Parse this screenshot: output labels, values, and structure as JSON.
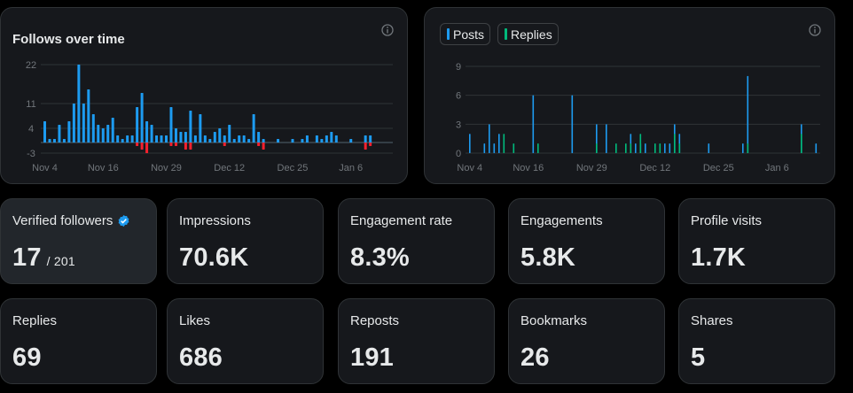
{
  "follows_chart": {
    "title": "Follows over time",
    "icon": "info-icon",
    "colors": {
      "positive": "#1d9bf0",
      "negative": "#f4212e",
      "grid": "#2f3336",
      "axis": "#71767b"
    }
  },
  "posts_chart": {
    "icon": "info-icon",
    "legend": [
      {
        "label": "Posts",
        "color": "#1d9bf0"
      },
      {
        "label": "Replies",
        "color": "#00ba7c"
      }
    ]
  },
  "stats": [
    {
      "label": "Verified followers",
      "value": "17",
      "sub": "/ 201",
      "verified_icon": "verified-badge-icon"
    },
    {
      "label": "Impressions",
      "value": "70.6K"
    },
    {
      "label": "Engagement rate",
      "value": "8.3%"
    },
    {
      "label": "Engagements",
      "value": "5.8K"
    },
    {
      "label": "Profile visits",
      "value": "1.7K"
    },
    {
      "label": "Replies",
      "value": "69"
    },
    {
      "label": "Likes",
      "value": "686"
    },
    {
      "label": "Reposts",
      "value": "191"
    },
    {
      "label": "Bookmarks",
      "value": "26"
    },
    {
      "label": "Shares",
      "value": "5"
    }
  ],
  "chart_data": [
    {
      "type": "bar",
      "title": "Follows over time",
      "ylim": [
        -3,
        22
      ],
      "yticks": [
        22,
        11,
        4,
        -3
      ],
      "xtick_labels": [
        "Nov 4",
        "Nov 16",
        "Nov 29",
        "Dec 12",
        "Dec 25",
        "Jan 6"
      ],
      "xtick_days": [
        0,
        12,
        25,
        38,
        51,
        63
      ],
      "x_start": "Nov 4",
      "series": [
        {
          "values": [
            {
              "day": 0,
              "value": 6
            },
            {
              "day": 1,
              "value": 1
            },
            {
              "day": 2,
              "value": 1
            },
            {
              "day": 3,
              "value": 5
            },
            {
              "day": 4,
              "value": 1
            },
            {
              "day": 5,
              "value": 6
            },
            {
              "day": 6,
              "value": 11
            },
            {
              "day": 7,
              "value": 22
            },
            {
              "day": 8,
              "value": 11
            },
            {
              "day": 9,
              "value": 15
            },
            {
              "day": 10,
              "value": 8
            },
            {
              "day": 11,
              "value": 5
            },
            {
              "day": 12,
              "value": 4
            },
            {
              "day": 13,
              "value": 5
            },
            {
              "day": 14,
              "value": 7
            },
            {
              "day": 15,
              "value": 2
            },
            {
              "day": 16,
              "value": 1
            },
            {
              "day": 17,
              "value": 2
            },
            {
              "day": 18,
              "value": 2
            },
            {
              "day": 19,
              "value": 10
            },
            {
              "day": 20,
              "value": 14
            },
            {
              "day": 21,
              "value": 6
            },
            {
              "day": 22,
              "value": 5
            },
            {
              "day": 23,
              "value": 2
            },
            {
              "day": 24,
              "value": 2
            },
            {
              "day": 25,
              "value": 2
            },
            {
              "day": 26,
              "value": 10
            },
            {
              "day": 27,
              "value": 4
            },
            {
              "day": 28,
              "value": 3
            },
            {
              "day": 29,
              "value": 3
            },
            {
              "day": 30,
              "value": 9
            },
            {
              "day": 31,
              "value": 2
            },
            {
              "day": 32,
              "value": 8
            },
            {
              "day": 33,
              "value": 2
            },
            {
              "day": 34,
              "value": 1
            },
            {
              "day": 35,
              "value": 3
            },
            {
              "day": 36,
              "value": 4
            },
            {
              "day": 37,
              "value": 2
            },
            {
              "day": 38,
              "value": 5
            },
            {
              "day": 39,
              "value": 1
            },
            {
              "day": 40,
              "value": 2
            },
            {
              "day": 41,
              "value": 2
            },
            {
              "day": 42,
              "value": 1
            },
            {
              "day": 43,
              "value": 8
            },
            {
              "day": 44,
              "value": 3
            },
            {
              "day": 45,
              "value": 1
            },
            {
              "day": 48,
              "value": 1
            },
            {
              "day": 51,
              "value": 1
            },
            {
              "day": 53,
              "value": 1
            },
            {
              "day": 54,
              "value": 2
            },
            {
              "day": 56,
              "value": 2
            },
            {
              "day": 57,
              "value": 1
            },
            {
              "day": 58,
              "value": 2
            },
            {
              "day": 59,
              "value": 3
            },
            {
              "day": 60,
              "value": 2
            },
            {
              "day": 63,
              "value": 1
            },
            {
              "day": 66,
              "value": 2
            },
            {
              "day": 67,
              "value": 2
            },
            {
              "day": 19,
              "value": -1
            },
            {
              "day": 20,
              "value": -2
            },
            {
              "day": 21,
              "value": -3
            },
            {
              "day": 26,
              "value": -1
            },
            {
              "day": 27,
              "value": -1
            },
            {
              "day": 29,
              "value": -2
            },
            {
              "day": 30,
              "value": -2
            },
            {
              "day": 37,
              "value": -1
            },
            {
              "day": 44,
              "value": -1
            },
            {
              "day": 45,
              "value": -2
            },
            {
              "day": 66,
              "value": -2
            },
            {
              "day": 67,
              "value": -1
            }
          ]
        }
      ]
    },
    {
      "type": "bar",
      "ylim": [
        0,
        9
      ],
      "yticks": [
        9,
        6,
        3,
        0
      ],
      "xtick_labels": [
        "Nov 4",
        "Nov 16",
        "Nov 29",
        "Dec 12",
        "Dec 25",
        "Jan 6"
      ],
      "xtick_days": [
        0,
        12,
        25,
        38,
        51,
        63
      ],
      "x_start": "Nov 4",
      "legend": [
        "Posts",
        "Replies"
      ],
      "series": [
        {
          "name": "Posts",
          "values": [
            {
              "day": 0,
              "value": 2
            },
            {
              "day": 3,
              "value": 1
            },
            {
              "day": 4,
              "value": 3
            },
            {
              "day": 5,
              "value": 1
            },
            {
              "day": 6,
              "value": 2
            },
            {
              "day": 13,
              "value": 6
            },
            {
              "day": 21,
              "value": 6
            },
            {
              "day": 26,
              "value": 3
            },
            {
              "day": 28,
              "value": 3
            },
            {
              "day": 33,
              "value": 2
            },
            {
              "day": 34,
              "value": 1
            },
            {
              "day": 35,
              "value": 1
            },
            {
              "day": 36,
              "value": 1
            },
            {
              "day": 40,
              "value": 1
            },
            {
              "day": 41,
              "value": 1
            },
            {
              "day": 42,
              "value": 3
            },
            {
              "day": 43,
              "value": 2
            },
            {
              "day": 49,
              "value": 1
            },
            {
              "day": 56,
              "value": 1
            },
            {
              "day": 57,
              "value": 8
            },
            {
              "day": 68,
              "value": 3
            },
            {
              "day": 71,
              "value": 1
            }
          ]
        },
        {
          "name": "Replies",
          "values": [
            {
              "day": 7,
              "value": 2
            },
            {
              "day": 9,
              "value": 1
            },
            {
              "day": 14,
              "value": 1
            },
            {
              "day": 26,
              "value": 1
            },
            {
              "day": 30,
              "value": 1
            },
            {
              "day": 32,
              "value": 1
            },
            {
              "day": 33,
              "value": 1
            },
            {
              "day": 35,
              "value": 2
            },
            {
              "day": 38,
              "value": 1
            },
            {
              "day": 39,
              "value": 1
            },
            {
              "day": 42,
              "value": 2
            },
            {
              "day": 43,
              "value": 1
            },
            {
              "day": 57,
              "value": 1
            },
            {
              "day": 68,
              "value": 2
            }
          ]
        }
      ]
    }
  ]
}
